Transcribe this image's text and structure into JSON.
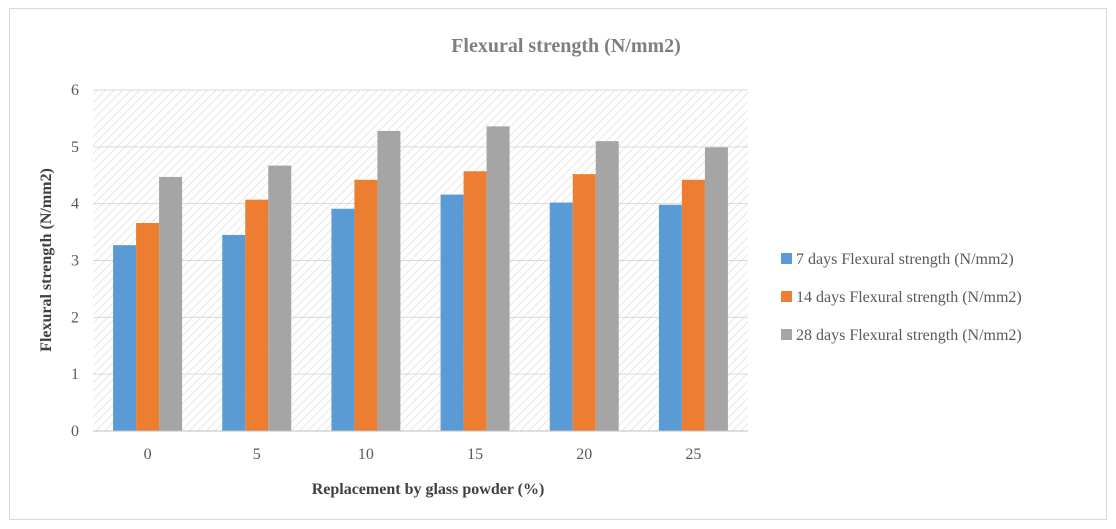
{
  "chart_data": {
    "type": "bar",
    "title": "Flexural strength (N/mm2)",
    "xlabel": "Replacement by glass powder (%)",
    "ylabel": "Flexural strength (N/mm2)",
    "categories": [
      "0",
      "5",
      "10",
      "15",
      "20",
      "25"
    ],
    "ylim": [
      0,
      6
    ],
    "yticks": [
      0,
      1,
      2,
      3,
      4,
      5,
      6
    ],
    "grid": true,
    "legend_position": "right",
    "series": [
      {
        "name": "7 days Flexural strength (N/mm2)",
        "color": "#5b9bd5",
        "values": [
          3.27,
          3.45,
          3.91,
          4.16,
          4.02,
          3.98
        ]
      },
      {
        "name": "14 days Flexural strength (N/mm2)",
        "color": "#ed7d31",
        "values": [
          3.66,
          4.07,
          4.42,
          4.57,
          4.52,
          4.42
        ]
      },
      {
        "name": "28 days Flexural strength (N/mm2)",
        "color": "#a5a5a5",
        "values": [
          4.47,
          4.67,
          5.28,
          5.36,
          5.1,
          4.99
        ]
      }
    ]
  }
}
